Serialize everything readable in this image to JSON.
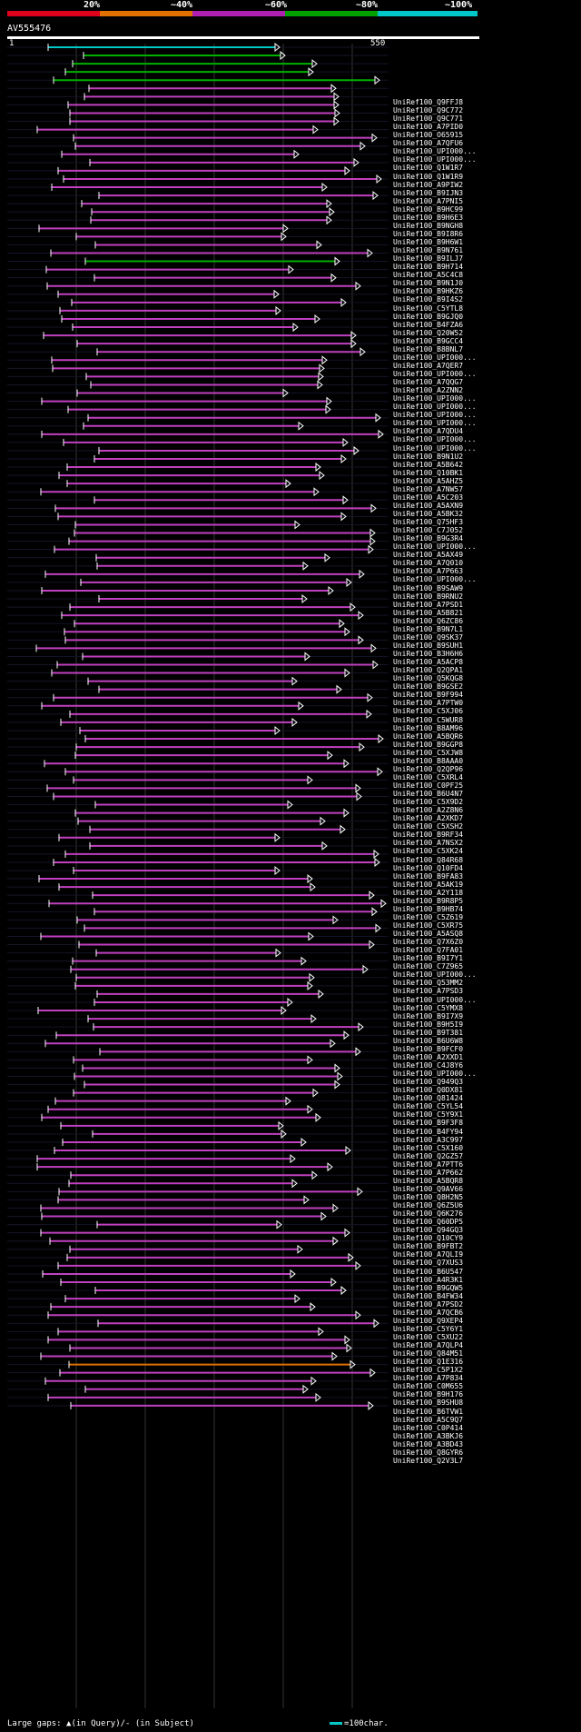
{
  "legend": {
    "labels": [
      "20%",
      "~40%",
      "~60%",
      "~80%",
      "~100%"
    ],
    "colors": [
      "#e0001c",
      "#e07000",
      "#b020b0",
      "#00a000",
      "#00c8c8"
    ]
  },
  "query": {
    "name": "AV555476",
    "start": "1",
    "end": "550"
  },
  "hits": [
    {
      "id": "UniRef100_Q9FFJ8",
      "color": "#00c8c8"
    },
    {
      "id": "UniRef100_Q9C772",
      "color": "#00b000"
    },
    {
      "id": "UniRef100_Q9C771",
      "color": "#00b000"
    },
    {
      "id": "UniRef100_A7PID0",
      "color": "#00b000"
    },
    {
      "id": "UniRef100_O65915",
      "color": "#00b000"
    },
    {
      "id": "UniRef100_A7QFU6",
      "color": "#c040c0"
    },
    {
      "id": "UniRef100_UPI000...",
      "color": "#c040c0"
    },
    {
      "id": "UniRef100_UPI000...",
      "color": "#c040c0"
    },
    {
      "id": "UniRef100_Q1W1R7",
      "color": "#c040c0"
    },
    {
      "id": "UniRef100_Q1W1R9",
      "color": "#c040c0"
    },
    {
      "id": "UniRef100_A9PIW2",
      "color": "#c040c0"
    },
    {
      "id": "UniRef100_B9IJN3",
      "color": "#c040c0"
    },
    {
      "id": "UniRef100_A7PNI5",
      "color": "#c040c0"
    },
    {
      "id": "UniRef100_B9HC99",
      "color": "#c040c0"
    },
    {
      "id": "UniRef100_B9H6E3",
      "color": "#c040c0"
    },
    {
      "id": "UniRef100_B9NGH8",
      "color": "#c040c0"
    },
    {
      "id": "UniRef100_B9I8R6",
      "color": "#c040c0"
    },
    {
      "id": "UniRef100_B9H6W1",
      "color": "#c040c0"
    },
    {
      "id": "UniRef100_B9N761",
      "color": "#c040c0"
    },
    {
      "id": "UniRef100_B9ILJ7",
      "color": "#c040c0"
    },
    {
      "id": "UniRef100_B9H714",
      "color": "#c040c0"
    },
    {
      "id": "UniRef100_A5C4C8",
      "color": "#c040c0"
    },
    {
      "id": "UniRef100_B9N1J0",
      "color": "#c040c0"
    },
    {
      "id": "UniRef100_B9HKZ6",
      "color": "#c040c0"
    },
    {
      "id": "UniRef100_B9I4S2",
      "color": "#c040c0"
    },
    {
      "id": "UniRef100_C5YTL8",
      "color": "#c040c0"
    },
    {
      "id": "UniRef100_B9GJQ0",
      "color": "#00b000"
    },
    {
      "id": "UniRef100_B4FZA6",
      "color": "#c040c0"
    },
    {
      "id": "UniRef100_Q20W52",
      "color": "#c040c0"
    },
    {
      "id": "UniRef100_B9GCC4",
      "color": "#c040c0"
    },
    {
      "id": "UniRef100_B8BNL7",
      "color": "#c040c0"
    },
    {
      "id": "UniRef100_UPI000...",
      "color": "#c040c0"
    },
    {
      "id": "UniRef100_A7QER7",
      "color": "#c040c0"
    },
    {
      "id": "UniRef100_UPI000...",
      "color": "#c040c0"
    },
    {
      "id": "UniRef100_A7QQG7",
      "color": "#c040c0"
    },
    {
      "id": "UniRef100_A2ZNN2",
      "color": "#c040c0"
    },
    {
      "id": "UniRef100_UPI000...",
      "color": "#c040c0"
    },
    {
      "id": "UniRef100_UPI000...",
      "color": "#c040c0"
    },
    {
      "id": "UniRef100_UPI000...",
      "color": "#c040c0"
    },
    {
      "id": "UniRef100_UPI000...",
      "color": "#c040c0"
    },
    {
      "id": "UniRef100_A7QDU4",
      "color": "#c040c0"
    },
    {
      "id": "UniRef100_UPI000...",
      "color": "#c040c0"
    },
    {
      "id": "UniRef100_UPI000...",
      "color": "#c040c0"
    },
    {
      "id": "UniRef100_B9N1U2",
      "color": "#c040c0"
    },
    {
      "id": "UniRef100_A5B642",
      "color": "#c040c0"
    },
    {
      "id": "UniRef100_Q10BK1",
      "color": "#c040c0"
    },
    {
      "id": "UniRef100_A5AHZ5",
      "color": "#c040c0"
    },
    {
      "id": "UniRef100_A7NW57",
      "color": "#c040c0"
    },
    {
      "id": "UniRef100_A5C203",
      "color": "#c040c0"
    },
    {
      "id": "UniRef100_A5AXN9",
      "color": "#c040c0"
    },
    {
      "id": "UniRef100_A5BK32",
      "color": "#c040c0"
    },
    {
      "id": "UniRef100_Q75HF3",
      "color": "#c040c0"
    },
    {
      "id": "UniRef100_C7J052",
      "color": "#c040c0"
    },
    {
      "id": "UniRef100_B9G3R4",
      "color": "#c040c0"
    },
    {
      "id": "UniRef100_UPI000...",
      "color": "#c040c0"
    },
    {
      "id": "UniRef100_A5AX49",
      "color": "#c040c0"
    },
    {
      "id": "UniRef100_A7Q010",
      "color": "#c040c0"
    },
    {
      "id": "UniRef100_A7P663",
      "color": "#c040c0"
    },
    {
      "id": "UniRef100_UPI000...",
      "color": "#c040c0"
    },
    {
      "id": "UniRef100_B9SAW9",
      "color": "#c040c0"
    },
    {
      "id": "UniRef100_B9RNU2",
      "color": "#c040c0"
    },
    {
      "id": "UniRef100_A7PSD1",
      "color": "#c040c0"
    },
    {
      "id": "UniRef100_A5B821",
      "color": "#c040c0"
    },
    {
      "id": "UniRef100_Q6ZC86",
      "color": "#c040c0"
    },
    {
      "id": "UniRef100_B9N7L1",
      "color": "#c040c0"
    },
    {
      "id": "UniRef100_Q9SK37",
      "color": "#c040c0"
    },
    {
      "id": "UniRef100_B9SUH1",
      "color": "#c040c0"
    },
    {
      "id": "UniRef100_B3H6H6",
      "color": "#c040c0"
    },
    {
      "id": "UniRef100_A5ACP8",
      "color": "#c040c0"
    },
    {
      "id": "UniRef100_Q2QPA1",
      "color": "#c040c0"
    },
    {
      "id": "UniRef100_Q5KQG8",
      "color": "#c040c0"
    },
    {
      "id": "UniRef100_B9GSE2",
      "color": "#c040c0"
    },
    {
      "id": "UniRef100_B9F994",
      "color": "#c040c0"
    },
    {
      "id": "UniRef100_A7PTW0",
      "color": "#c040c0"
    },
    {
      "id": "UniRef100_C5XJ06",
      "color": "#c040c0"
    },
    {
      "id": "UniRef100_C5WUR8",
      "color": "#c040c0"
    },
    {
      "id": "UniRef100_B8AM96",
      "color": "#c040c0"
    },
    {
      "id": "UniRef100_A5BQR6",
      "color": "#c040c0"
    },
    {
      "id": "UniRef100_B9GGP8",
      "color": "#c040c0"
    },
    {
      "id": "UniRef100_C5XJW8",
      "color": "#c040c0"
    },
    {
      "id": "UniRef100_B8AAA0",
      "color": "#c040c0"
    },
    {
      "id": "UniRef100_Q2QP96",
      "color": "#c040c0"
    },
    {
      "id": "UniRef100_C5XRL4",
      "color": "#c040c0"
    },
    {
      "id": "UniRef100_C0PF25",
      "color": "#c040c0"
    },
    {
      "id": "UniRef100_B6U4N7",
      "color": "#c040c0"
    },
    {
      "id": "UniRef100_C5X9D2",
      "color": "#c040c0"
    },
    {
      "id": "UniRef100_A2Z8N6",
      "color": "#c040c0"
    },
    {
      "id": "UniRef100_A2XKD7",
      "color": "#c040c0"
    },
    {
      "id": "UniRef100_C5XSH2",
      "color": "#c040c0"
    },
    {
      "id": "UniRef100_B9RF34",
      "color": "#c040c0"
    },
    {
      "id": "UniRef100_A7NSX2",
      "color": "#c040c0"
    },
    {
      "id": "UniRef100_C5XK24",
      "color": "#c040c0"
    },
    {
      "id": "UniRef100_Q84R68",
      "color": "#c040c0"
    },
    {
      "id": "UniRef100_Q10FD4",
      "color": "#c040c0"
    },
    {
      "id": "UniRef100_B9FA83",
      "color": "#c040c0"
    },
    {
      "id": "UniRef100_A5AK19",
      "color": "#c040c0"
    },
    {
      "id": "UniRef100_A2Y118",
      "color": "#c040c0"
    },
    {
      "id": "UniRef100_B9R8P5",
      "color": "#c040c0"
    },
    {
      "id": "UniRef100_B9HB74",
      "color": "#c040c0"
    },
    {
      "id": "UniRef100_C5Z619",
      "color": "#c040c0"
    },
    {
      "id": "UniRef100_C5XR75",
      "color": "#c040c0"
    },
    {
      "id": "UniRef100_A5ASQ8",
      "color": "#c040c0"
    },
    {
      "id": "UniRef100_Q7X6Z0",
      "color": "#c040c0"
    },
    {
      "id": "UniRef100_Q7FA01",
      "color": "#c040c0"
    },
    {
      "id": "UniRef100_B9I7Y1",
      "color": "#c040c0"
    },
    {
      "id": "UniRef100_C7Z965",
      "color": "#c040c0"
    },
    {
      "id": "UniRef100_UPI000...",
      "color": "#c040c0"
    },
    {
      "id": "UniRef100_Q53MM2",
      "color": "#c040c0"
    },
    {
      "id": "UniRef100_A7PSD3",
      "color": "#c040c0"
    },
    {
      "id": "UniRef100_UPI000...",
      "color": "#c040c0"
    },
    {
      "id": "UniRef100_C5YMX8",
      "color": "#c040c0"
    },
    {
      "id": "UniRef100_B9I7X9",
      "color": "#c040c0"
    },
    {
      "id": "UniRef100_B9H5I9",
      "color": "#c040c0"
    },
    {
      "id": "UniRef100_B9T381",
      "color": "#c040c0"
    },
    {
      "id": "UniRef100_B6U6W8",
      "color": "#c040c0"
    },
    {
      "id": "UniRef100_B9FCF0",
      "color": "#c040c0"
    },
    {
      "id": "UniRef100_A2XXD1",
      "color": "#c040c0"
    },
    {
      "id": "UniRef100_C4J8Y6",
      "color": "#c040c0"
    },
    {
      "id": "UniRef100_UPI000...",
      "color": "#c040c0"
    },
    {
      "id": "UniRef100_Q949Q3",
      "color": "#c040c0"
    },
    {
      "id": "UniRef100_Q0DX81",
      "color": "#c040c0"
    },
    {
      "id": "UniRef100_Q81424",
      "color": "#c040c0"
    },
    {
      "id": "UniRef100_C5YL54",
      "color": "#c040c0"
    },
    {
      "id": "UniRef100_C5Y9X1",
      "color": "#c040c0"
    },
    {
      "id": "UniRef100_B9F3F8",
      "color": "#c040c0"
    },
    {
      "id": "UniRef100_B4FY94",
      "color": "#c040c0"
    },
    {
      "id": "UniRef100_A3C997",
      "color": "#c040c0"
    },
    {
      "id": "UniRef100_C5X160",
      "color": "#c040c0"
    },
    {
      "id": "UniRef100_Q2GZ57",
      "color": "#c040c0"
    },
    {
      "id": "UniRef100_A7PTT6",
      "color": "#c040c0"
    },
    {
      "id": "UniRef100_A7P662",
      "color": "#c040c0"
    },
    {
      "id": "UniRef100_A5BQR8",
      "color": "#c040c0"
    },
    {
      "id": "UniRef100_Q9AV66",
      "color": "#c040c0"
    },
    {
      "id": "UniRef100_Q8H2N5",
      "color": "#c040c0"
    },
    {
      "id": "UniRef100_Q6Z5U6",
      "color": "#c040c0"
    },
    {
      "id": "UniRef100_Q6K276",
      "color": "#c040c0"
    },
    {
      "id": "UniRef100_Q60DP5",
      "color": "#c040c0"
    },
    {
      "id": "UniRef100_Q94GQ3",
      "color": "#c040c0"
    },
    {
      "id": "UniRef100_Q10CY9",
      "color": "#c040c0"
    },
    {
      "id": "UniRef100_B9FBT2",
      "color": "#c040c0"
    },
    {
      "id": "UniRef100_A7QLI9",
      "color": "#c040c0"
    },
    {
      "id": "UniRef100_Q7XUS3",
      "color": "#c040c0"
    },
    {
      "id": "UniRef100_B6U547",
      "color": "#c040c0"
    },
    {
      "id": "UniRef100_A4R3K1",
      "color": "#c040c0"
    },
    {
      "id": "UniRef100_B9GQW5",
      "color": "#c040c0"
    },
    {
      "id": "UniRef100_B4FW34",
      "color": "#c040c0"
    },
    {
      "id": "UniRef100_A7PSD2",
      "color": "#c040c0"
    },
    {
      "id": "UniRef100_A7QCB6",
      "color": "#c040c0"
    },
    {
      "id": "UniRef100_Q9XEP4",
      "color": "#c040c0"
    },
    {
      "id": "UniRef100_C5Y6Y1",
      "color": "#c040c0"
    },
    {
      "id": "UniRef100_C5XU22",
      "color": "#c040c0"
    },
    {
      "id": "UniRef100_A7QLP4",
      "color": "#c040c0"
    },
    {
      "id": "UniRef100_Q84M51",
      "color": "#c040c0"
    },
    {
      "id": "UniRef100_Q1E316",
      "color": "#c040c0"
    },
    {
      "id": "UniRef100_C5P1X2",
      "color": "#c040c0"
    },
    {
      "id": "UniRef100_A7P834",
      "color": "#c040c0"
    },
    {
      "id": "UniRef100_C0M655",
      "color": "#c040c0"
    },
    {
      "id": "UniRef100_B9H176",
      "color": "#c040c0"
    },
    {
      "id": "UniRef100_B9SHU8",
      "color": "#c040c0"
    },
    {
      "id": "UniRef100_B6TVW1",
      "color": "#c040c0"
    },
    {
      "id": "UniRef100_A5C9Q7",
      "color": "#e07000"
    },
    {
      "id": "UniRef100_C0P414",
      "color": "#c040c0"
    },
    {
      "id": "UniRef100_A3BKJ6",
      "color": "#c040c0"
    },
    {
      "id": "UniRef100_A3BD43",
      "color": "#c040c0"
    },
    {
      "id": "UniRef100_Q8GYR6",
      "color": "#c040c0"
    },
    {
      "id": "UniRef100_Q2V3L7",
      "color": "#c040c0"
    }
  ],
  "footer": {
    "left": "Large gaps: ▲(in Query)/- (in Subject)",
    "right": "=100char."
  }
}
